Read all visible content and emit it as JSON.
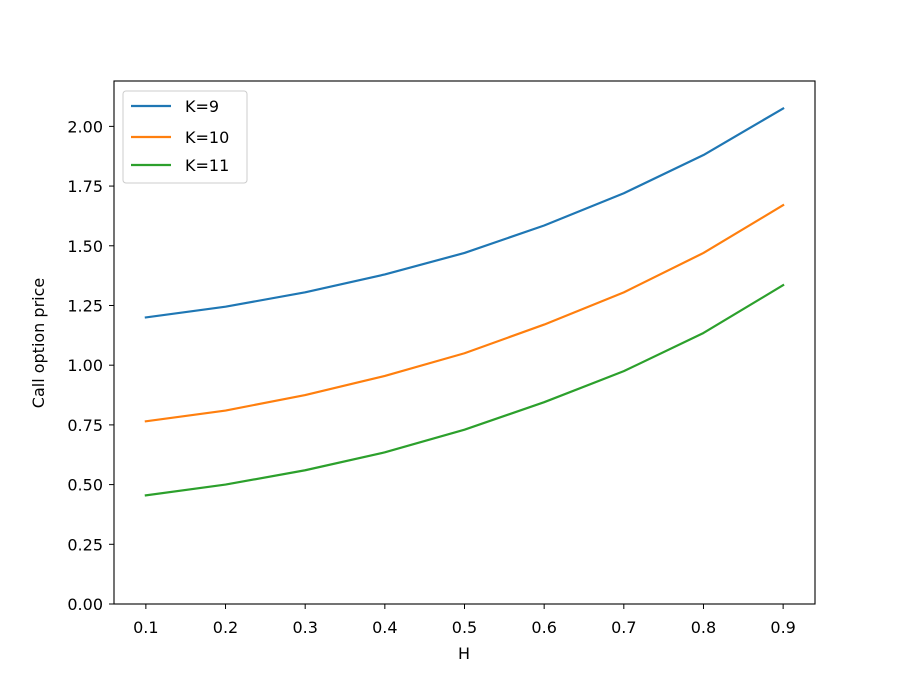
{
  "chart_data": {
    "type": "line",
    "title": "",
    "xlabel": "H",
    "ylabel": "Call option price",
    "x": [
      0.1,
      0.2,
      0.3,
      0.4,
      0.5,
      0.6,
      0.7,
      0.8,
      0.9
    ],
    "xticks": [
      "0.1",
      "0.2",
      "0.3",
      "0.4",
      "0.5",
      "0.6",
      "0.7",
      "0.8",
      "0.9"
    ],
    "yticks": [
      "0.00",
      "0.25",
      "0.50",
      "0.75",
      "1.00",
      "1.25",
      "1.50",
      "1.75",
      "2.00"
    ],
    "ylim": [
      0,
      2.19
    ],
    "xlim": [
      0.06,
      0.94
    ],
    "grid": false,
    "legend_position": "top-left",
    "series": [
      {
        "name": "K=9",
        "color": "#1f77b4",
        "values": [
          1.2,
          1.245,
          1.305,
          1.38,
          1.47,
          1.585,
          1.72,
          1.88,
          2.075
        ]
      },
      {
        "name": "K=10",
        "color": "#ff7f0e",
        "values": [
          0.765,
          0.81,
          0.875,
          0.955,
          1.05,
          1.17,
          1.305,
          1.47,
          1.67
        ]
      },
      {
        "name": "K=11",
        "color": "#2ca02c",
        "values": [
          0.455,
          0.5,
          0.56,
          0.635,
          0.73,
          0.845,
          0.975,
          1.135,
          1.335
        ]
      }
    ]
  }
}
